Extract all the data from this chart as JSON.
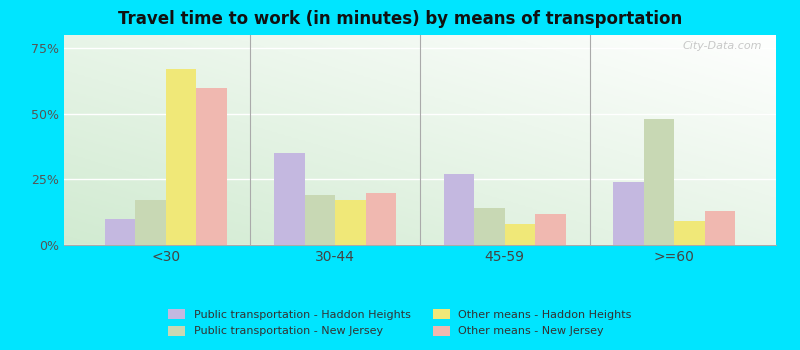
{
  "title": "Travel time to work (in minutes) by means of transportation",
  "categories": [
    "<30",
    "30-44",
    "45-59",
    ">=60"
  ],
  "series_order": [
    "Public transportation - Haddon Heights",
    "Public transportation - New Jersey",
    "Other means - Haddon Heights",
    "Other means - New Jersey"
  ],
  "series": {
    "Public transportation - Haddon Heights": [
      10,
      35,
      27,
      24
    ],
    "Public transportation - New Jersey": [
      17,
      19,
      14,
      48
    ],
    "Other means - Haddon Heights": [
      67,
      17,
      8,
      9
    ],
    "Other means - New Jersey": [
      60,
      20,
      12,
      13
    ]
  },
  "colors": {
    "Public transportation - Haddon Heights": "#c4b8e0",
    "Public transportation - New Jersey": "#c8d8b4",
    "Other means - Haddon Heights": "#f0e878",
    "Other means - New Jersey": "#f0b8b0"
  },
  "ylim": [
    0,
    80
  ],
  "yticks": [
    0,
    25,
    50,
    75
  ],
  "ytick_labels": [
    "0%",
    "25%",
    "50%",
    "75%"
  ],
  "outer_background": "#00e5ff",
  "bar_width": 0.18,
  "legend_order": [
    "Public transportation - Haddon Heights",
    "Public transportation - New Jersey",
    "Other means - Haddon Heights",
    "Other means - New Jersey"
  ],
  "legend_ncol": 2
}
